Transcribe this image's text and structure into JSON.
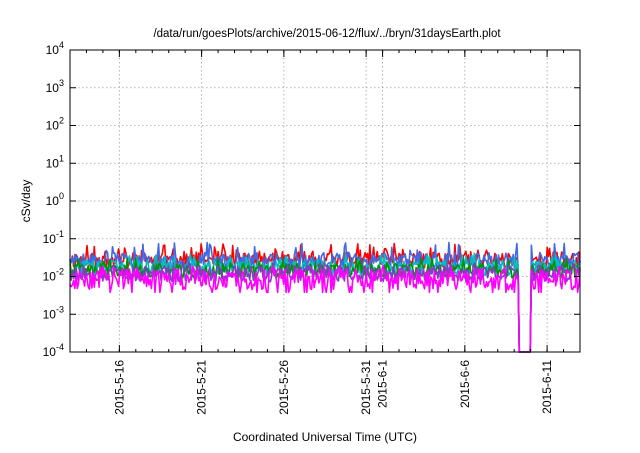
{
  "chart_data": {
    "type": "line",
    "title": "/data/run/goesPlots/archive/2015-06-12/flux/../bryn/31daysEarth.plot",
    "xlabel": "Coordinated Universal Time (UTC)",
    "ylabel": "cSv/day",
    "x_range": [
      "2015-05-13",
      "2015-06-13"
    ],
    "y_scale": "log",
    "ylim": [
      0.0001,
      10000
    ],
    "grid": true,
    "legend": "none",
    "x_ticks": [
      {
        "label": "2015-5-16",
        "date": "2015-05-16"
      },
      {
        "label": "2015-5-21",
        "date": "2015-05-21"
      },
      {
        "label": "2015-5-26",
        "date": "2015-05-26"
      },
      {
        "label": "2015-5-31",
        "date": "2015-05-31"
      },
      {
        "label": "2015-6-1",
        "date": "2015-06-01"
      },
      {
        "label": "2015-6-6",
        "date": "2015-06-06"
      },
      {
        "label": "2015-6-11",
        "date": "2015-06-11"
      }
    ],
    "y_ticks": [
      {
        "base": "10",
        "exp": "-4",
        "value": 0.0001
      },
      {
        "base": "10",
        "exp": "-3",
        "value": 0.001
      },
      {
        "base": "10",
        "exp": "-2",
        "value": 0.01
      },
      {
        "base": "10",
        "exp": "-1",
        "value": 0.1
      },
      {
        "base": "10",
        "exp": "0",
        "value": 1
      },
      {
        "base": "10",
        "exp": "1",
        "value": 10
      },
      {
        "base": "10",
        "exp": "2",
        "value": 100
      },
      {
        "base": "10",
        "exp": "3",
        "value": 1000
      },
      {
        "base": "10",
        "exp": "4",
        "value": 10000
      }
    ],
    "gap": {
      "start": "2015-06-09T06:00",
      "end": "2015-06-10T00:00",
      "note_dropout_min": 0.0001
    },
    "series": [
      {
        "color": "#ff0000",
        "level": 0.028,
        "spread": 0.22,
        "spike": 0.075,
        "seed": 11
      },
      {
        "color": "#4169e1",
        "level": 0.026,
        "spread": 0.22,
        "spike": 0.08,
        "seed": 23
      },
      {
        "color": "#00bfbf",
        "level": 0.017,
        "spread": 0.2,
        "spike": 0.04,
        "seed": 37
      },
      {
        "color": "#009000",
        "level": 0.014,
        "spread": 0.2,
        "spike": 0.03,
        "seed": 41
      },
      {
        "color": "#7f3fbf",
        "level": 0.012,
        "spread": 0.22,
        "spike": 0.025,
        "seed": 53
      },
      {
        "color": "#ff00ff",
        "level": 0.0085,
        "spread": 0.28,
        "spike": 0.02,
        "seed": 67
      }
    ]
  }
}
